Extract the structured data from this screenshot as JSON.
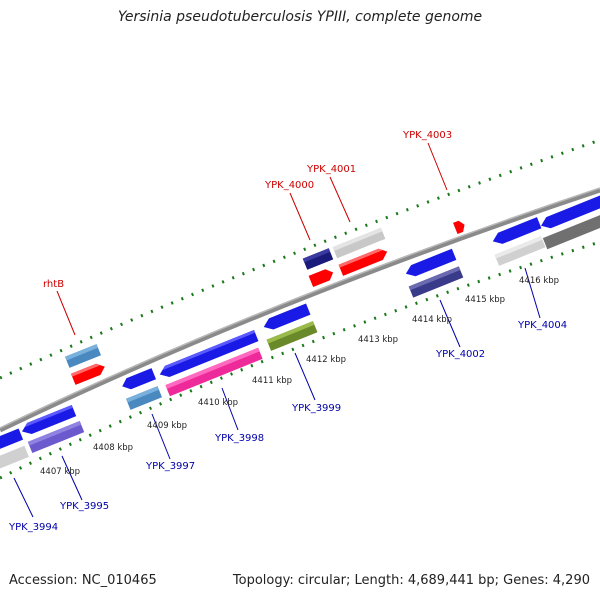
{
  "title": "Yersinia pseudotuberculosis YPIII, complete genome",
  "footer": {
    "accession": "Accession: NC_010465",
    "summary": "Topology: circular; Length: 4,689,441 bp; Genes: 4,290"
  },
  "scale_labels": [
    "4407 kbp",
    "4408 kbp",
    "4409 kbp",
    "4410 kbp",
    "4411 kbp",
    "4412 kbp",
    "4413 kbp",
    "4414 kbp",
    "4415 kbp",
    "4416 kbp"
  ],
  "forward_genes": [
    "rhtB",
    "YPK_4000",
    "YPK_4001",
    "YPK_4003"
  ],
  "reverse_genes": [
    "YPK_3994",
    "YPK_3995",
    "YPK_3997",
    "YPK_3998",
    "YPK_3999",
    "YPK_4002",
    "YPK_4004"
  ],
  "colors": {
    "forward_label": "#cc0000",
    "reverse_label": "#0000aa",
    "backbone": "#8a8a8a",
    "tick": "#1a7a1a"
  }
}
